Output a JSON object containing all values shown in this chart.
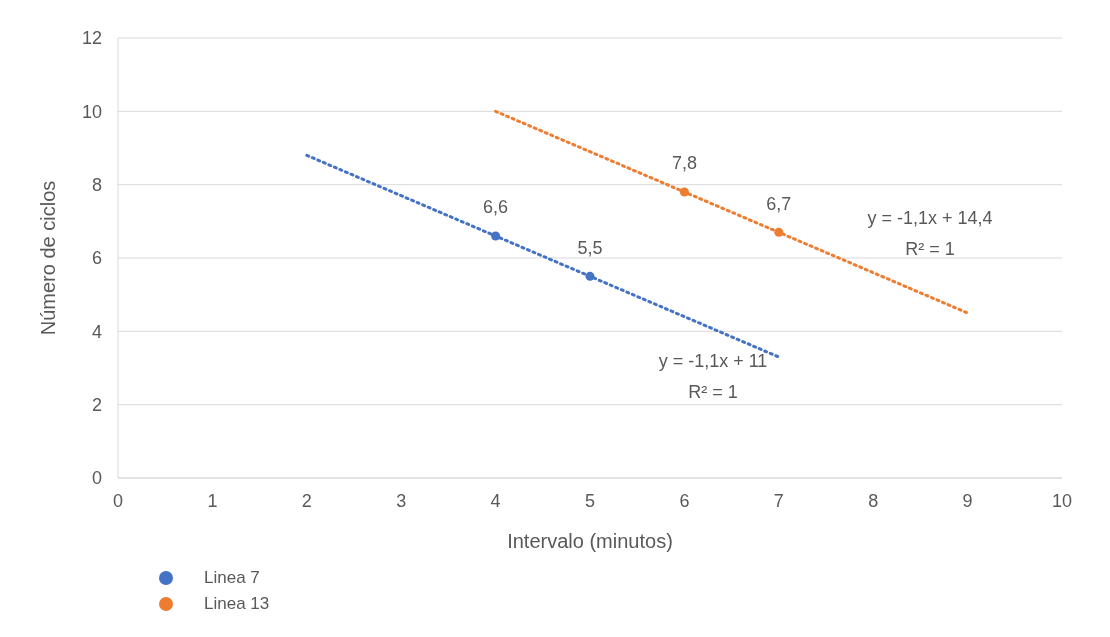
{
  "chart_data": {
    "type": "scatter",
    "xlabel": "Intervalo (minutos)",
    "ylabel": "Número de ciclos",
    "xlim": [
      0,
      10
    ],
    "xticks": [
      0,
      1,
      2,
      3,
      4,
      5,
      6,
      7,
      8,
      9,
      10
    ],
    "ylim": [
      0,
      12
    ],
    "yticks": [
      0,
      2,
      4,
      6,
      8,
      10,
      12
    ],
    "grid": "y",
    "legend": "bottom left",
    "series": [
      {
        "name": "Linea 7",
        "color": "#4472c4",
        "marker": "circle",
        "x": [
          4,
          5
        ],
        "values": [
          6.6,
          5.5
        ],
        "value_labels": [
          "6,6",
          "5,5"
        ]
      },
      {
        "name": "Linea 13",
        "color": "#ed7d31",
        "marker": "circle",
        "x": [
          6,
          7
        ],
        "values": [
          7.8,
          6.7
        ],
        "value_labels": [
          "7,8",
          "6,7"
        ]
      },
      {
        "type": "line",
        "color": "#4472c4",
        "marker": "none",
        "line_style": "dotted",
        "x": [
          2,
          7
        ],
        "values": [
          8.8,
          3.3
        ]
      },
      {
        "type": "line",
        "color": "#ed7d31",
        "marker": "none",
        "line_style": "dotted",
        "x": [
          4,
          9
        ],
        "values": [
          10,
          4.5
        ]
      }
    ],
    "annotations": [
      "y = -1,1x + 11",
      "R² = 1",
      "y = -1,1x + 14,4",
      "R² = 1"
    ]
  }
}
